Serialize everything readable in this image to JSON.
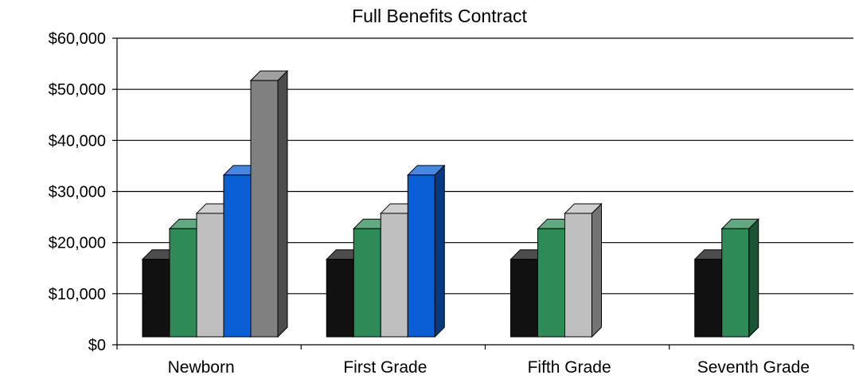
{
  "chart_data": {
    "type": "bar",
    "title": "Full Benefits Contract",
    "xlabel": "",
    "ylabel": "",
    "ylim": [
      0,
      60000
    ],
    "yticks": [
      0,
      10000,
      20000,
      30000,
      40000,
      50000,
      60000
    ],
    "ytick_labels": [
      "$0",
      "$10,000",
      "$20,000",
      "$30,000",
      "$40,000",
      "$50,000",
      "$60,000"
    ],
    "categories": [
      "Newborn",
      "First Grade",
      "Fifth Grade",
      "Seventh Grade"
    ],
    "grid": true,
    "legend": "none",
    "style": "3d-column",
    "series": [
      {
        "color": "#111111",
        "values": [
          17500,
          17500,
          17500,
          17500
        ]
      },
      {
        "color": "#2e8b57",
        "values": [
          23500,
          23500,
          23500,
          23500
        ]
      },
      {
        "color": "#bfbfbf",
        "values": [
          26500,
          26500,
          26500,
          null
        ]
      },
      {
        "color": "#0a5fd6",
        "values": [
          34000,
          34000,
          null,
          null
        ]
      },
      {
        "color": "#808080",
        "values": [
          52500,
          null,
          null,
          null
        ]
      }
    ]
  }
}
